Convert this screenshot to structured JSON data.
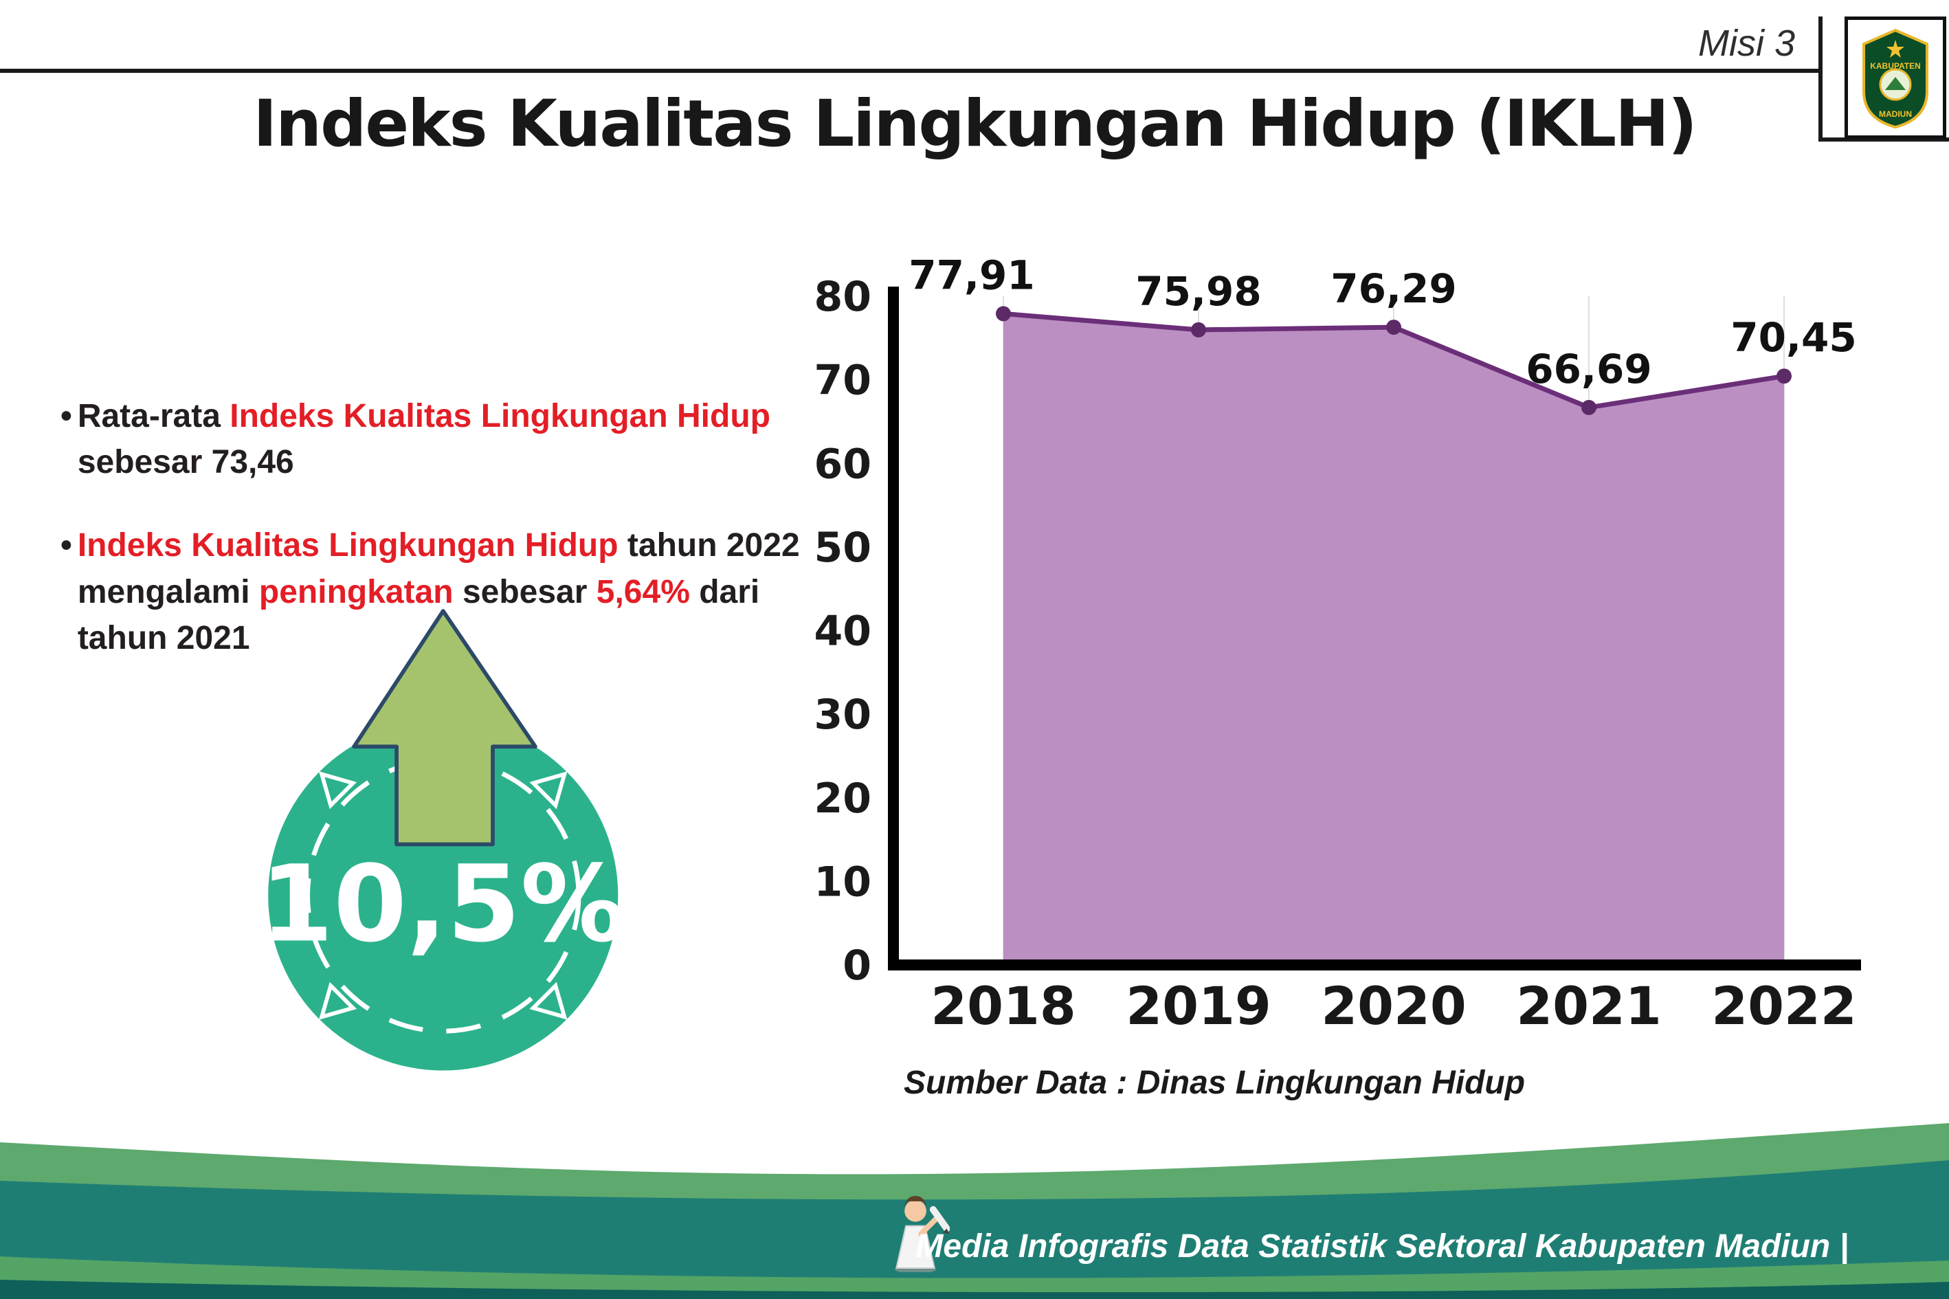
{
  "header": {
    "misi_label": "Misi 3",
    "title": "Indeks Kualitas Lingkungan Hidup (IKLH)",
    "logo_top_text": "KABUPATEN",
    "logo_bottom_text": "MADIUN"
  },
  "bullets": [
    {
      "segments": [
        {
          "text": "Rata-rata ",
          "color": "black"
        },
        {
          "text": "Indeks Kualitas Lingkungan Hidup",
          "color": "red"
        },
        {
          "text": " sebesar 73,46",
          "color": "black"
        }
      ]
    },
    {
      "segments": [
        {
          "text": "Indeks Kualitas Lingkungan Hidup",
          "color": "red"
        },
        {
          "text": " tahun 2022 mengalami ",
          "color": "black"
        },
        {
          "text": "peningkatan",
          "color": "red"
        },
        {
          "text": " sebesar ",
          "color": "black"
        },
        {
          "text": "5,64%",
          "color": "red"
        },
        {
          "text": " dari tahun 2021",
          "color": "black"
        }
      ]
    }
  ],
  "badge": {
    "value": "10,5%",
    "circle_color": "#2bb28c",
    "arrow_color": "#a5c36c"
  },
  "chart_data": {
    "type": "area",
    "title": "",
    "categories": [
      "2018",
      "2019",
      "2020",
      "2021",
      "2022"
    ],
    "values": [
      77.91,
      75.98,
      76.29,
      66.69,
      70.45
    ],
    "point_labels": [
      "77,91",
      "75,98",
      "76,29",
      "66,69",
      "70,45"
    ],
    "ylim": [
      0,
      80
    ],
    "yticks": [
      0,
      10,
      20,
      30,
      40,
      50,
      60,
      70,
      80
    ],
    "grid": "vertical-light",
    "legend": "none",
    "fill_color": "#bc8fc3",
    "line_color": "#6b2e78",
    "marker_color": "#5c2a66",
    "source": "Sumber Data : Dinas Lingkungan Hidup"
  },
  "footer": {
    "caption": "Media Infografis Data Statistik Sektoral Kabupaten Madiun |",
    "colors": [
      "#5ea96e",
      "#1f7e74",
      "#54a466",
      "#0f5f5a"
    ]
  }
}
